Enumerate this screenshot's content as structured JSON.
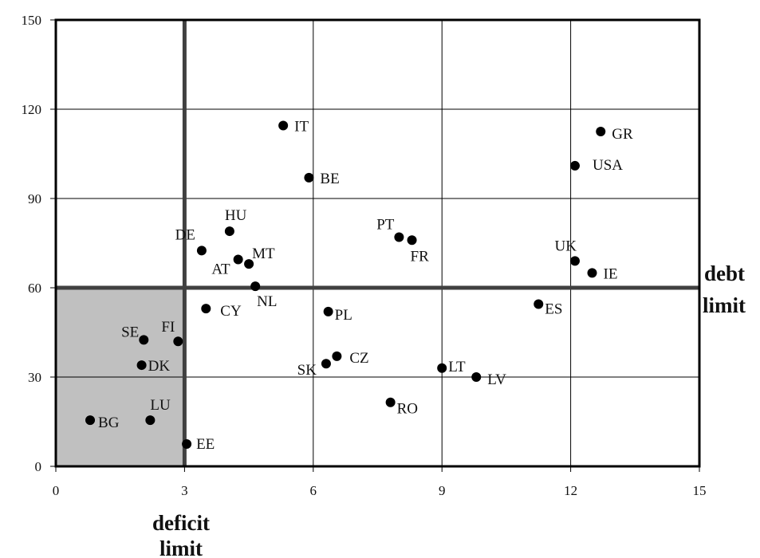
{
  "chart_data": {
    "type": "scatter",
    "title": "",
    "xlabel": "",
    "ylabel": "",
    "xlim": [
      0,
      15
    ],
    "ylim": [
      0,
      150
    ],
    "x_ticks": [
      0,
      3,
      6,
      9,
      12,
      15
    ],
    "y_ticks": [
      0,
      30,
      60,
      90,
      120,
      150
    ],
    "grid": true,
    "colors": {
      "point": "#000000",
      "shaded_region": "#c0c0c0",
      "limit_line": "#404040"
    },
    "points": [
      {
        "label": "IT",
        "x": 5.3,
        "y": 114.5
      },
      {
        "label": "GR",
        "x": 12.7,
        "y": 112.5
      },
      {
        "label": "USA",
        "x": 12.1,
        "y": 101
      },
      {
        "label": "BE",
        "x": 5.9,
        "y": 97
      },
      {
        "label": "HU",
        "x": 4.05,
        "y": 79
      },
      {
        "label": "PT",
        "x": 8.0,
        "y": 77
      },
      {
        "label": "FR",
        "x": 8.3,
        "y": 76
      },
      {
        "label": "DE",
        "x": 3.4,
        "y": 72.5
      },
      {
        "label": "MT",
        "x": 4.5,
        "y": 68
      },
      {
        "label": "AT",
        "x": 4.25,
        "y": 69.5
      },
      {
        "label": "UK",
        "x": 12.1,
        "y": 69
      },
      {
        "label": "IE",
        "x": 12.5,
        "y": 65
      },
      {
        "label": "NL",
        "x": 4.65,
        "y": 60.5
      },
      {
        "label": "ES",
        "x": 11.25,
        "y": 54.5
      },
      {
        "label": "CY",
        "x": 3.5,
        "y": 53
      },
      {
        "label": "PL",
        "x": 6.35,
        "y": 52
      },
      {
        "label": "SE",
        "x": 2.05,
        "y": 42.5
      },
      {
        "label": "FI",
        "x": 2.85,
        "y": 42
      },
      {
        "label": "CZ",
        "x": 6.55,
        "y": 37
      },
      {
        "label": "SK",
        "x": 6.3,
        "y": 34.5
      },
      {
        "label": "DK",
        "x": 2.0,
        "y": 34
      },
      {
        "label": "LT",
        "x": 9.0,
        "y": 33
      },
      {
        "label": "LV",
        "x": 9.8,
        "y": 30
      },
      {
        "label": "RO",
        "x": 7.8,
        "y": 21.5
      },
      {
        "label": "BG",
        "x": 0.8,
        "y": 15.5
      },
      {
        "label": "LU",
        "x": 2.2,
        "y": 15.5
      },
      {
        "label": "EE",
        "x": 3.05,
        "y": 7.5
      }
    ],
    "reference_lines": [
      {
        "axis": "x",
        "value": 3,
        "label_line1": "deficit",
        "label_line2": "limit"
      },
      {
        "axis": "y",
        "value": 60,
        "label_line1": "debt",
        "label_line2": "limit"
      }
    ],
    "shaded_region": {
      "x": [
        0,
        3
      ],
      "y": [
        0,
        60
      ]
    }
  }
}
